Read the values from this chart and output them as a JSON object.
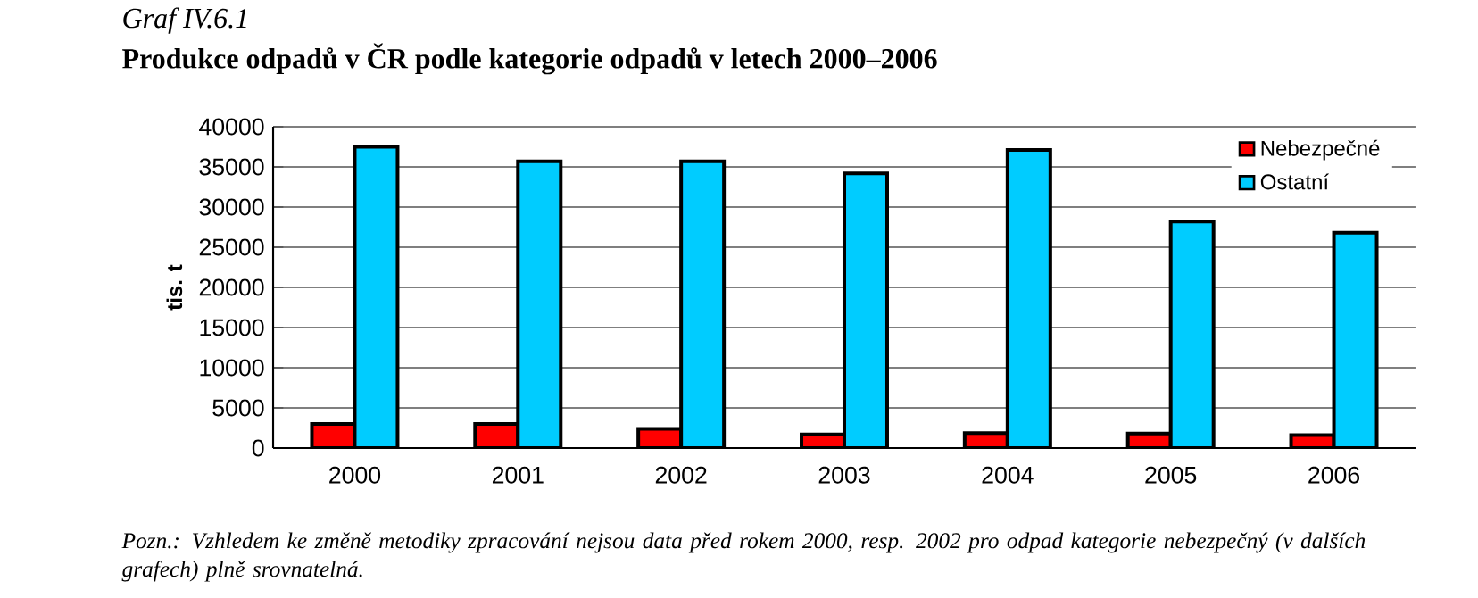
{
  "chart_data": {
    "type": "bar",
    "subtitle": "Graf IV.6.1",
    "title": "Produkce odpadů v ČR podle kategorie odpadů v letech 2000–2006",
    "ylabel": "tis. t",
    "categories": [
      "2000",
      "2001",
      "2002",
      "2003",
      "2004",
      "2005",
      "2006"
    ],
    "series": [
      {
        "name": "Nebezpečné",
        "color": "#ff0000",
        "values": [
          3000,
          3000,
          2400,
          1700,
          1850,
          1800,
          1600
        ]
      },
      {
        "name": "Ostatní",
        "color": "#00ccff",
        "values": [
          37500,
          35700,
          35700,
          34200,
          37100,
          28200,
          26800
        ]
      }
    ],
    "ylim": [
      0,
      40000
    ],
    "yticks": [
      0,
      5000,
      10000,
      15000,
      20000,
      25000,
      30000,
      35000,
      40000
    ],
    "grid": "y",
    "legend": "top right",
    "annotations": [
      "Pozn.: Vzhledem ke změně metodiky zpracování nejsou data před rokem 2000, resp. 2002 pro odpad kategorie nebezpečný (v dalších grafech) plně srovnatelná."
    ]
  }
}
